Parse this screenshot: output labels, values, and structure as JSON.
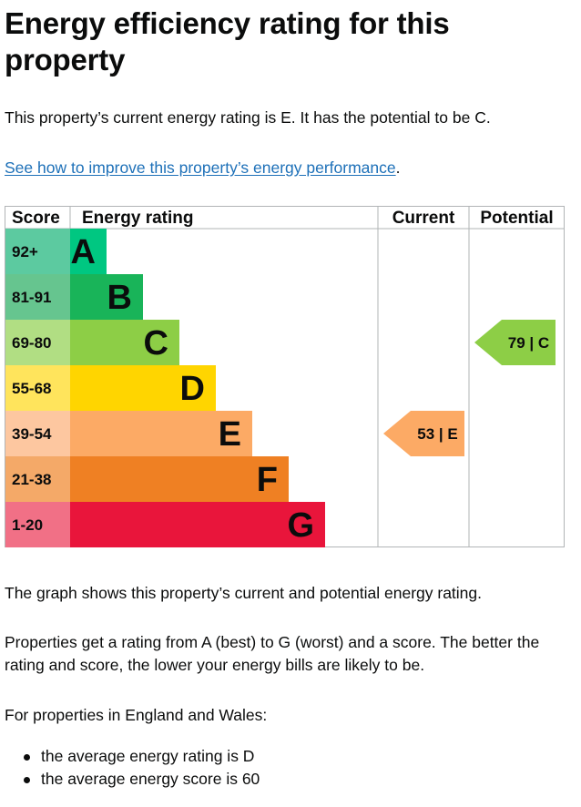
{
  "title": "Energy efficiency rating for this property",
  "summary": "This property’s current energy rating is E. It has the potential to be C.",
  "improve_link": "See how to improve this property’s energy performance",
  "improve_link_suffix": ".",
  "chart_data": {
    "type": "table",
    "headers": {
      "score": "Score",
      "rating": "Energy rating",
      "current": "Current",
      "potential": "Potential"
    },
    "bands": [
      {
        "score": "92+",
        "letter": "A",
        "color": "#00c781",
        "score_bg": "#5ccaa0"
      },
      {
        "score": "81-91",
        "letter": "B",
        "color": "#19b459",
        "score_bg": "#66c58f"
      },
      {
        "score": "69-80",
        "letter": "C",
        "color": "#8dce46",
        "score_bg": "#b1de83"
      },
      {
        "score": "55-68",
        "letter": "D",
        "color": "#ffd500",
        "score_bg": "#ffe45c"
      },
      {
        "score": "39-54",
        "letter": "E",
        "color": "#fcaa65",
        "score_bg": "#fdc7a0"
      },
      {
        "score": "21-38",
        "letter": "F",
        "color": "#ef8023",
        "score_bg": "#f4a968"
      },
      {
        "score": "1-20",
        "letter": "G",
        "color": "#e9153b",
        "score_bg": "#f17086"
      }
    ],
    "current": {
      "score": 53,
      "band": "E",
      "label": "53 | E",
      "color": "#fcaa65"
    },
    "potential": {
      "score": 79,
      "band": "C",
      "label": "79 | C",
      "color": "#8dce46"
    }
  },
  "graph_note": "The graph shows this property’s current and potential energy rating.",
  "rating_explainer": "Properties get a rating from A (best) to G (worst) and a score. The better the rating and score, the lower your energy bills are likely to be.",
  "england_wales_intro": "For properties in England and Wales:",
  "averages": [
    "the average energy rating is D",
    "the average energy score is 60"
  ]
}
